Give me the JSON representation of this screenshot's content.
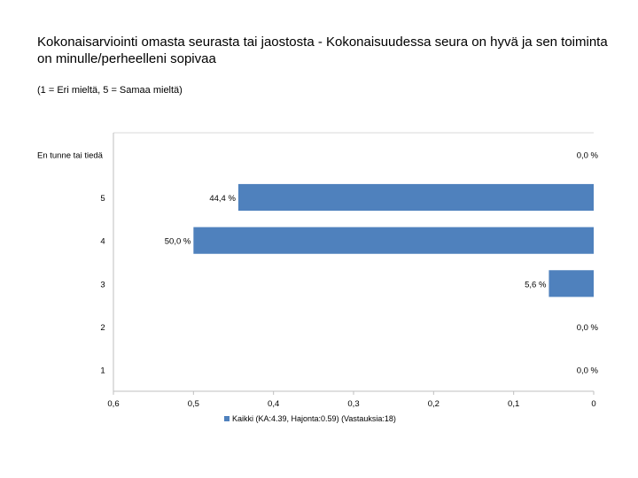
{
  "title": "Kokonaisarviointi omasta seurasta tai jaostosta - Kokonaisuudessa seura on hyvä ja sen toiminta on minulle/perheelleni sopivaa",
  "subtitle": "(1 = Eri mieltä, 5 = Samaa mieltä)",
  "chart_data": {
    "type": "bar",
    "orientation": "horizontal",
    "x_reversed": true,
    "categories": [
      "En tunne tai tiedä",
      "5",
      "4",
      "3",
      "2",
      "1"
    ],
    "series": [
      {
        "name": "Kaikki (KA:4.39, Hajonta:0.59) (Vastauksia:18)",
        "values": [
          0.0,
          0.444,
          0.5,
          0.056,
          0.0,
          0.0
        ],
        "labels": [
          "0,0 %",
          "44,4 %",
          "50,0 %",
          "5,6 %",
          "0,0 %",
          "0,0 %"
        ],
        "color": "#4f81bd"
      }
    ],
    "xlim": [
      0,
      0.6
    ],
    "x_ticks": [
      0.6,
      0.5,
      0.4,
      0.3,
      0.2,
      0.1,
      0
    ],
    "x_tick_labels": [
      "0,6",
      "0,5",
      "0,4",
      "0,3",
      "0,2",
      "0,1",
      "0"
    ],
    "grid": true,
    "legend_position": "bottom"
  }
}
